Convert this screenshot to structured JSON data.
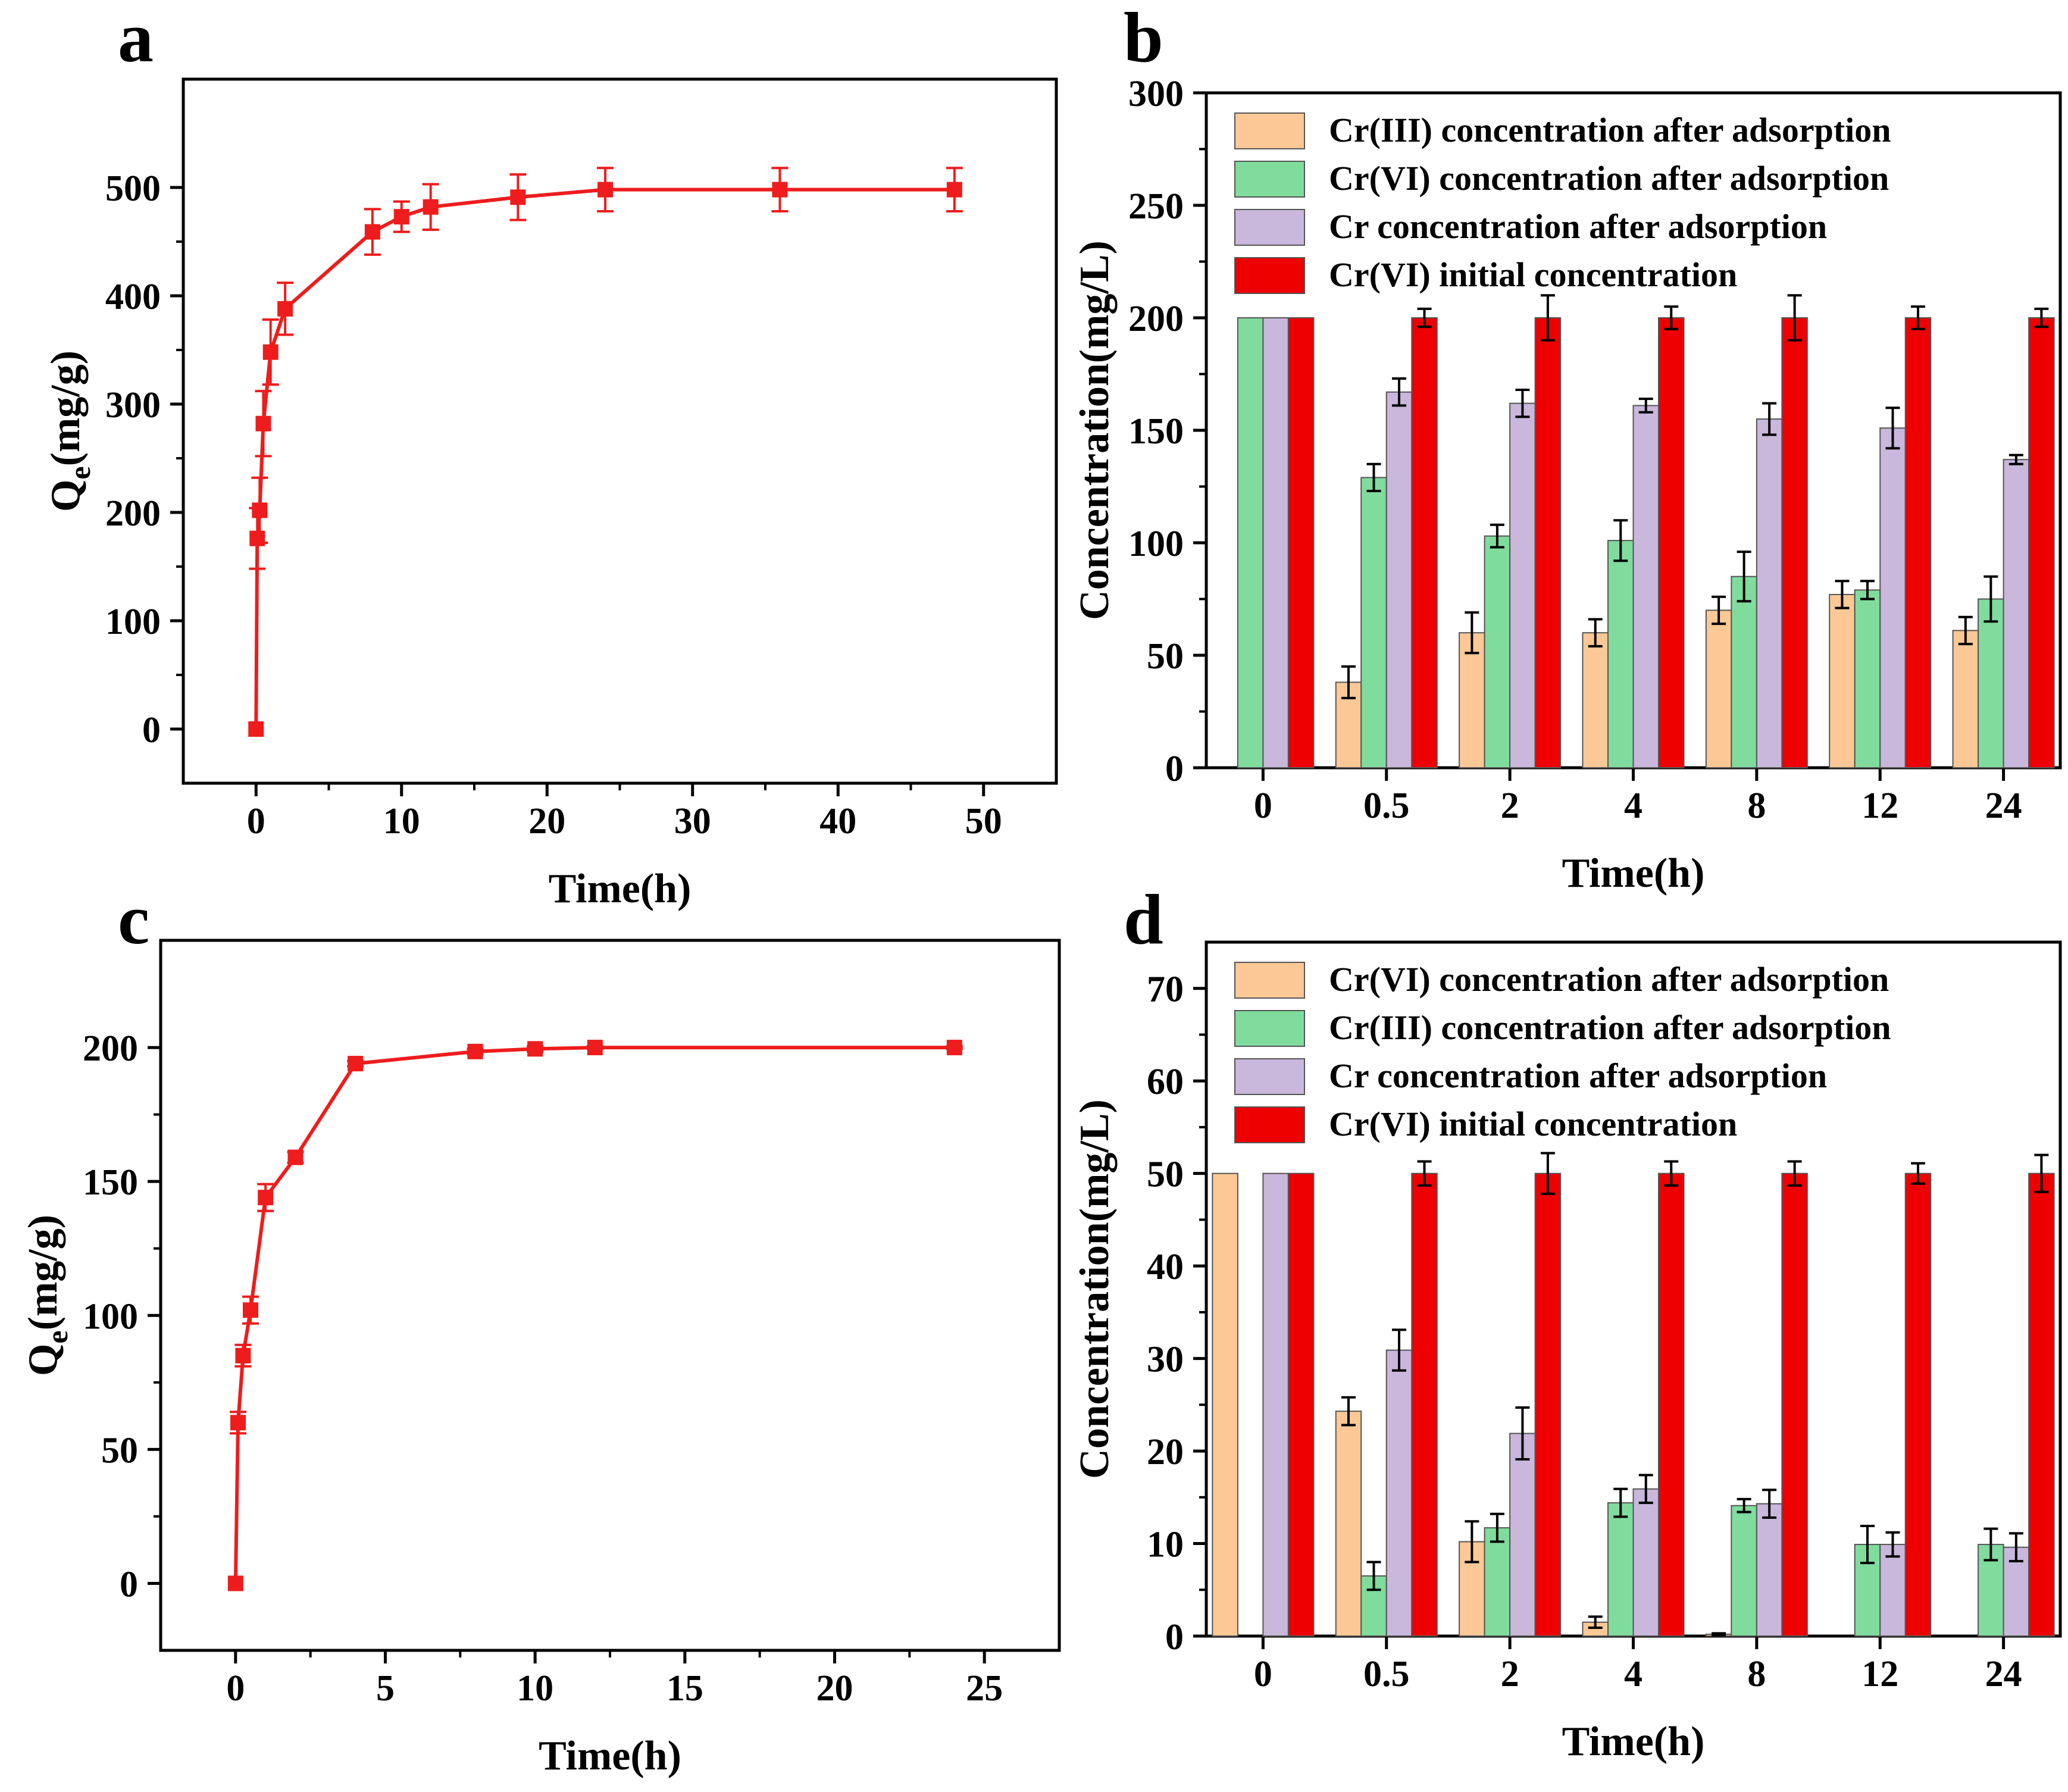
{
  "colors": {
    "line": "#ee1c1c",
    "cr3": "#fcc895",
    "cr6": "#7fdc9d",
    "cr": "#c9b7dc",
    "initial": "#ee0000",
    "axis": "#000000"
  },
  "chart_data": [
    {
      "panel": "a",
      "type": "line",
      "xlabel": "Time(h)",
      "ylabel_main": "Q",
      "ylabel_sub": "e",
      "ylabel_rest": "(mg/g)",
      "xlim": [
        -5,
        55
      ],
      "ylim": [
        -50,
        600
      ],
      "xticks": [
        0,
        10,
        20,
        30,
        40,
        50
      ],
      "yticks": [
        0,
        100,
        200,
        300,
        400,
        500
      ],
      "series": [
        {
          "x": [
            0,
            0.083,
            0.25,
            0.5,
            1,
            2,
            8,
            10,
            12,
            18,
            24,
            36,
            48
          ],
          "y": [
            0,
            176,
            202,
            282,
            348,
            388,
            459,
            473,
            482,
            491,
            498,
            498,
            498
          ],
          "err": [
            0,
            28,
            30,
            30,
            30,
            24,
            21,
            14,
            21,
            21,
            20,
            20,
            20
          ]
        }
      ]
    },
    {
      "panel": "b",
      "type": "bar",
      "xlabel": "Time(h)",
      "ylabel": "Concentration(mg/L)",
      "ylim": [
        0,
        300
      ],
      "yticks": [
        0,
        50,
        100,
        150,
        200,
        250,
        300
      ],
      "categories": [
        "0",
        "0.5",
        "2",
        "4",
        "8",
        "12",
        "24"
      ],
      "legend": "top-left",
      "series": [
        {
          "name": "Cr(III) concentration after adsorption",
          "color_key": "cr3",
          "values": [
            0,
            38,
            60,
            60,
            70,
            77,
            61
          ],
          "err": [
            0,
            7,
            9,
            6,
            6,
            6,
            6
          ]
        },
        {
          "name": "Cr(VI) concentration after adsorption",
          "color_key": "cr6",
          "values": [
            200,
            129,
            103,
            101,
            85,
            79,
            75
          ],
          "err": [
            0,
            6,
            5,
            9,
            11,
            4,
            10
          ]
        },
        {
          "name": "Cr concentration after adsorption",
          "color_key": "cr",
          "values": [
            200,
            167,
            162,
            161,
            155,
            151,
            137
          ],
          "err": [
            0,
            6,
            6,
            3,
            7,
            9,
            2
          ]
        },
        {
          "name": "Cr(VI) initial concentration",
          "color_key": "initial",
          "values": [
            200,
            200,
            200,
            200,
            200,
            200,
            200
          ],
          "err": [
            0,
            4,
            10,
            5,
            10,
            5,
            4
          ]
        }
      ]
    },
    {
      "panel": "c",
      "type": "line",
      "xlabel": "Time(h)",
      "ylabel_main": "Q",
      "ylabel_sub": "e",
      "ylabel_rest": "(mg/g)",
      "xlim": [
        -2.5,
        27.5
      ],
      "ylim": [
        -25,
        240
      ],
      "xticks": [
        0,
        5,
        10,
        15,
        20,
        25
      ],
      "yticks": [
        0,
        50,
        100,
        150,
        200
      ],
      "series": [
        {
          "x": [
            0,
            0.083,
            0.25,
            0.5,
            1,
            2,
            4,
            8,
            10,
            12,
            24
          ],
          "y": [
            0,
            60,
            85,
            102,
            144,
            159,
            194,
            198.5,
            199.5,
            200,
            200
          ],
          "err": [
            0,
            4,
            4,
            5,
            5,
            2,
            1,
            1,
            1,
            0.5,
            0.5
          ]
        }
      ]
    },
    {
      "panel": "d",
      "type": "bar",
      "xlabel": "Time(h)",
      "ylabel": "Concentration(mg/L)",
      "ylim": [
        0,
        75
      ],
      "yticks": [
        0,
        10,
        20,
        30,
        40,
        50,
        60,
        70
      ],
      "categories": [
        "0",
        "0.5",
        "2",
        "4",
        "8",
        "12",
        "24"
      ],
      "legend": "top-left",
      "series": [
        {
          "name": "Cr(VI) concentration after adsorption",
          "color_key": "cr3",
          "values": [
            50,
            24.3,
            10.2,
            1.5,
            0.2,
            0,
            0
          ],
          "err": [
            0,
            1.5,
            2.2,
            0.6,
            0.1,
            0,
            0
          ]
        },
        {
          "name": "Cr(III) concentration after adsorption",
          "color_key": "cr6",
          "values": [
            0,
            6.5,
            11.7,
            14.4,
            14.1,
            9.9,
            9.9
          ],
          "err": [
            0,
            1.5,
            1.5,
            1.5,
            0.7,
            2,
            1.7
          ]
        },
        {
          "name": "Cr concentration after adsorption",
          "color_key": "cr",
          "values": [
            50,
            30.9,
            21.9,
            15.9,
            14.3,
            9.9,
            9.6
          ],
          "err": [
            0,
            2.2,
            2.8,
            1.5,
            1.5,
            1.3,
            1.5
          ]
        },
        {
          "name": "Cr(VI) initial concentration",
          "color_key": "initial",
          "values": [
            50,
            50,
            50,
            50,
            50,
            50,
            50
          ],
          "err": [
            0,
            1.3,
            2.2,
            1.3,
            1.3,
            1.1,
            2
          ]
        }
      ]
    }
  ]
}
